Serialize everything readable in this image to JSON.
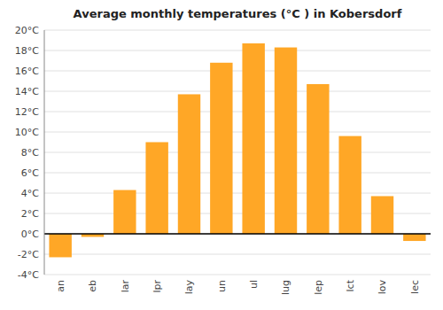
{
  "chart_data": {
    "type": "bar",
    "title": "Average monthly temperatures (°C ) in Kobersdorf",
    "categories": [
      "an",
      "eb",
      "lar",
      "lpr",
      "lay",
      "un",
      "ul",
      "lug",
      "lep",
      "lct",
      "lov",
      "lec"
    ],
    "values": [
      -2.3,
      -0.3,
      4.3,
      9.0,
      13.7,
      16.8,
      18.7,
      18.3,
      14.7,
      9.6,
      3.7,
      -0.7
    ],
    "color": "#FFA726",
    "ylim": [
      -4,
      20
    ],
    "yticks": [
      {
        "value": -4,
        "label": "-4°C"
      },
      {
        "value": -2,
        "label": "-2°C"
      },
      {
        "value": 0,
        "label": "0°C"
      },
      {
        "value": 2,
        "label": "2°C"
      },
      {
        "value": 4,
        "label": "4°C"
      },
      {
        "value": 6,
        "label": "6°C"
      },
      {
        "value": 8,
        "label": "8°C"
      },
      {
        "value": 10,
        "label": "10°C"
      },
      {
        "value": 12,
        "label": "12°C"
      },
      {
        "value": 14,
        "label": "14°C"
      },
      {
        "value": 16,
        "label": "16°C"
      },
      {
        "value": 18,
        "label": "18°C"
      },
      {
        "value": 20,
        "label": "20°C"
      }
    ],
    "grid": true
  }
}
